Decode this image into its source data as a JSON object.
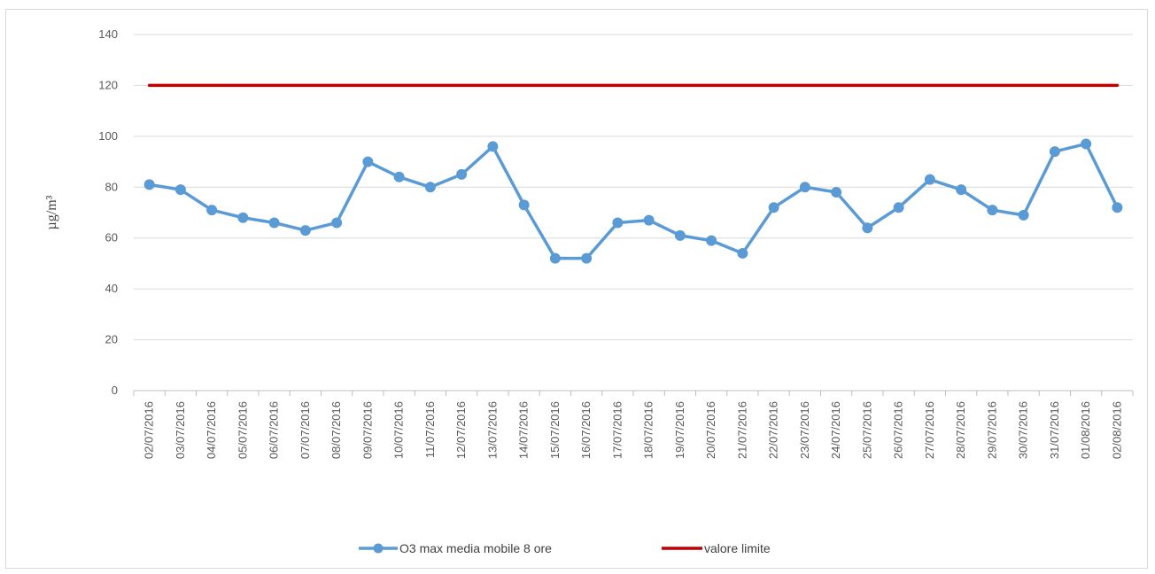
{
  "chart_data": {
    "type": "line",
    "title": "",
    "xlabel": "",
    "ylabel": "µg/m³",
    "ylim": [
      0,
      140
    ],
    "yticks": [
      0,
      20,
      40,
      60,
      80,
      100,
      120,
      140
    ],
    "grid": true,
    "legend_position": "bottom",
    "categories": [
      "02/07/2016",
      "03/07/2016",
      "04/07/2016",
      "05/07/2016",
      "06/07/2016",
      "07/07/2016",
      "08/07/2016",
      "09/07/2016",
      "10/07/2016",
      "11/07/2016",
      "12/07/2016",
      "13/07/2016",
      "14/07/2016",
      "15/07/2016",
      "16/07/2016",
      "17/07/2016",
      "18/07/2016",
      "19/07/2016",
      "20/07/2016",
      "21/07/2016",
      "22/07/2016",
      "23/07/2016",
      "24/07/2016",
      "25/07/2016",
      "26/07/2016",
      "27/07/2016",
      "28/07/2016",
      "29/07/2016",
      "30/07/2016",
      "31/07/2016",
      "01/08/2016",
      "02/08/2016"
    ],
    "series": [
      {
        "name": "O3 max media mobile 8 ore",
        "color": "#5b9bd5",
        "marker": "circle",
        "values": [
          81,
          79,
          71,
          68,
          66,
          63,
          66,
          90,
          84,
          80,
          85,
          96,
          73,
          52,
          52,
          66,
          67,
          61,
          59,
          54,
          72,
          80,
          78,
          64,
          72,
          83,
          79,
          71,
          69,
          94,
          97,
          72
        ]
      },
      {
        "name": "valore limite",
        "color": "#c00000",
        "marker": "none",
        "values": [
          120,
          120,
          120,
          120,
          120,
          120,
          120,
          120,
          120,
          120,
          120,
          120,
          120,
          120,
          120,
          120,
          120,
          120,
          120,
          120,
          120,
          120,
          120,
          120,
          120,
          120,
          120,
          120,
          120,
          120,
          120,
          120
        ]
      }
    ]
  }
}
